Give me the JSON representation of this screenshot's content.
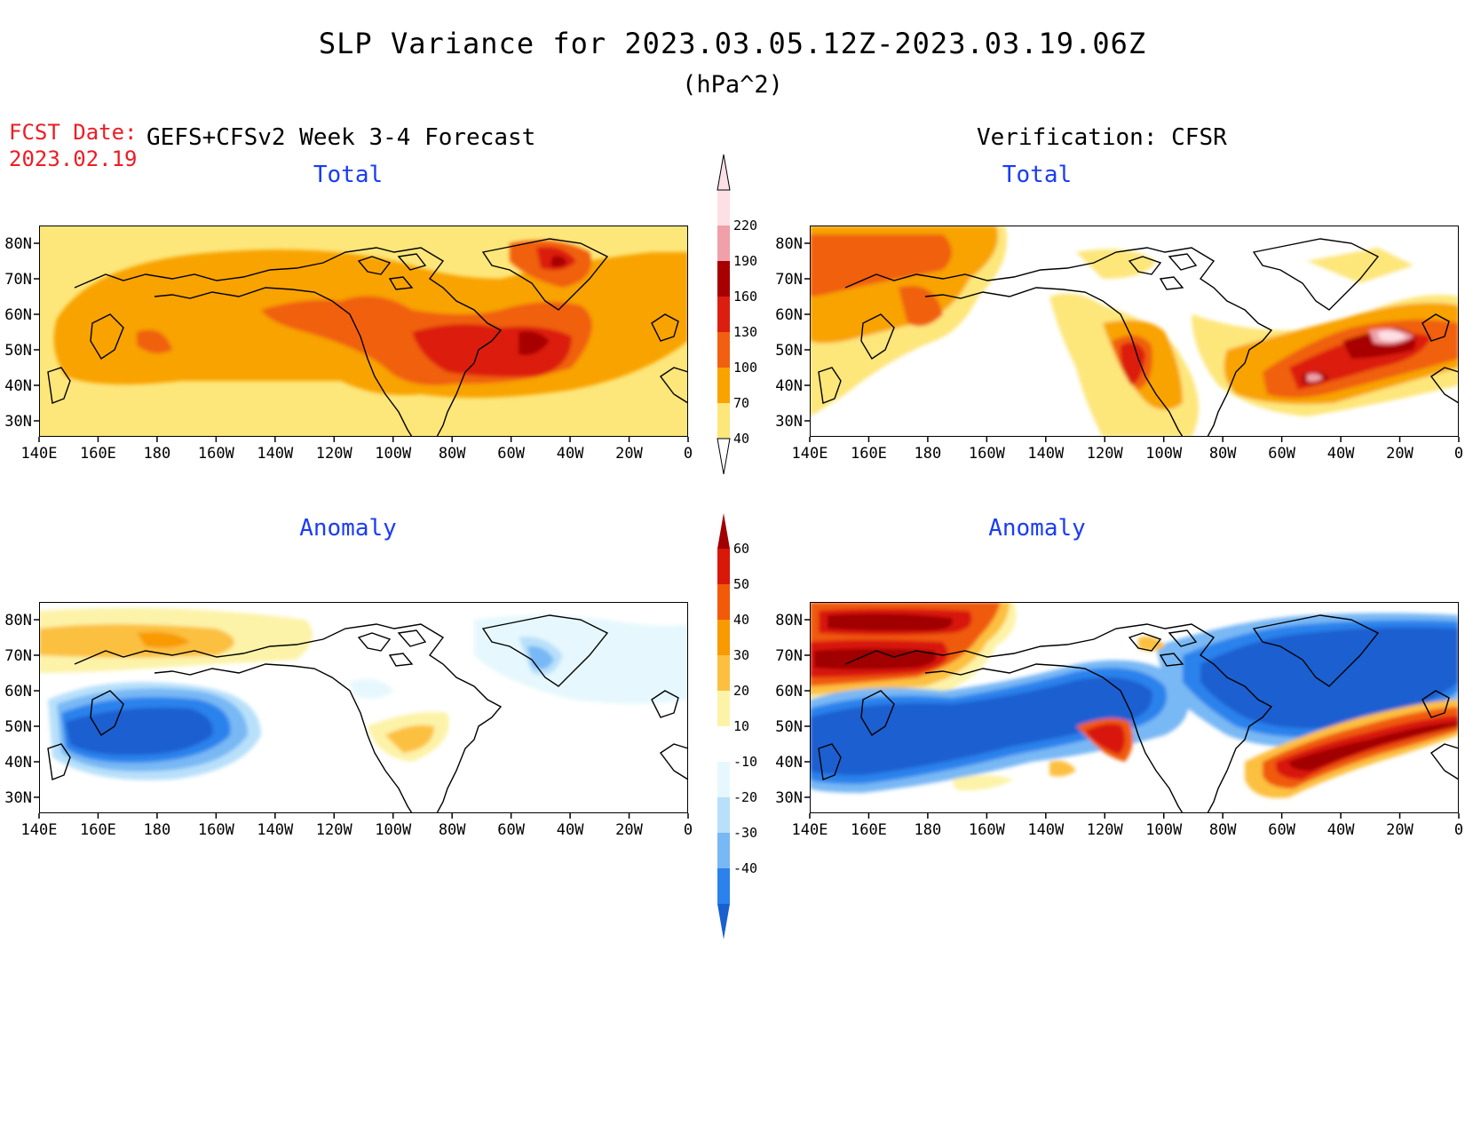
{
  "header": {
    "title": "SLP Variance for 2023.03.05.12Z-2023.03.19.06Z",
    "units": "(hPa^2)",
    "fcst_date_label": "FCST Date:",
    "fcst_date": "2023.02.19",
    "forecast_label": "GEFS+CFSv2 Week 3-4 Forecast",
    "verification_label": "Verification: CFSR"
  },
  "panels": [
    {
      "id": "fcst-total",
      "title": "Total"
    },
    {
      "id": "verif-total",
      "title": "Total"
    },
    {
      "id": "fcst-anom",
      "title": "Anomaly"
    },
    {
      "id": "verif-anom",
      "title": "Anomaly"
    }
  ],
  "axes": {
    "lon_labels": [
      "140E",
      "160E",
      "180",
      "160W",
      "140W",
      "120W",
      "100W",
      "80W",
      "60W",
      "40W",
      "20W",
      "0"
    ],
    "lat_labels": [
      "80N",
      "70N",
      "60N",
      "50N",
      "40N",
      "30N"
    ]
  },
  "colorbars": {
    "total": {
      "levels": [
        "40",
        "70",
        "100",
        "130",
        "160",
        "190",
        "220"
      ],
      "colors": [
        "#fde67a",
        "#f8a300",
        "#f06010",
        "#dc1e10",
        "#a80000",
        "#f0a0a8",
        "#fde0e6"
      ]
    },
    "anomaly": {
      "levels": [
        "-40",
        "-30",
        "-20",
        "-10",
        "10",
        "20",
        "30",
        "40",
        "50",
        "60"
      ],
      "colors": [
        "#1a5fd0",
        "#2b82ec",
        "#78b8f4",
        "#b8e0fa",
        "#e6f8fd",
        "#ffffff",
        "#fcf3a8",
        "#fcc040",
        "#f89a00",
        "#f05a08",
        "#d81808",
        "#a00000"
      ]
    }
  }
}
